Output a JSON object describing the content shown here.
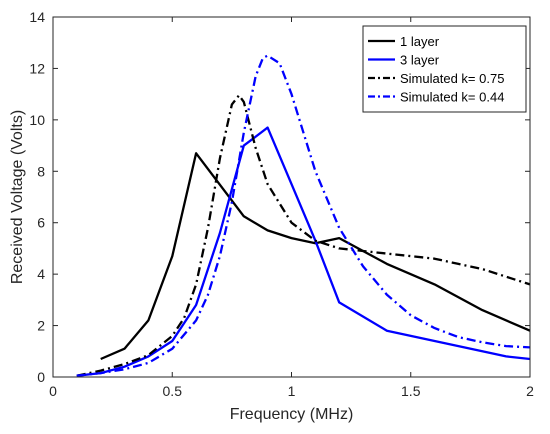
{
  "chart_data": {
    "type": "line",
    "title": "",
    "xlabel": "Frequency (MHz)",
    "ylabel": "Received Voltage (Volts)",
    "xlim": [
      0,
      2
    ],
    "ylim": [
      0,
      14
    ],
    "xticks": [
      0,
      0.5,
      1,
      1.5,
      2
    ],
    "xtick_labels": [
      "0",
      "0.5",
      "1",
      "1.5",
      "2"
    ],
    "yticks": [
      0,
      2,
      4,
      6,
      8,
      10,
      12,
      14
    ],
    "ytick_labels": [
      "0",
      "2",
      "4",
      "6",
      "8",
      "10",
      "12",
      "14"
    ],
    "grid": false,
    "legend_position": "top-right",
    "series": [
      {
        "name": "1 layer",
        "color": "#000000",
        "style": "solid",
        "x": [
          0.2,
          0.3,
          0.4,
          0.5,
          0.6,
          0.8,
          0.9,
          1.0,
          1.1,
          1.2,
          1.4,
          1.6,
          1.8,
          2.0
        ],
        "y": [
          0.7,
          1.1,
          2.2,
          4.7,
          8.7,
          6.25,
          5.7,
          5.4,
          5.2,
          5.4,
          4.4,
          3.6,
          2.6,
          1.8
        ]
      },
      {
        "name": "3 layer",
        "color": "#0000ff",
        "style": "solid",
        "x": [
          0.1,
          0.2,
          0.3,
          0.4,
          0.5,
          0.6,
          0.7,
          0.8,
          0.9,
          1.0,
          1.1,
          1.2,
          1.4,
          1.6,
          1.8,
          1.9,
          2.0
        ],
        "y": [
          0.05,
          0.15,
          0.4,
          0.8,
          1.4,
          2.8,
          5.6,
          9.0,
          9.7,
          7.5,
          5.3,
          2.9,
          1.8,
          1.4,
          1.0,
          0.8,
          0.7
        ]
      },
      {
        "name": "Simulated k= 0.75",
        "color": "#000000",
        "style": "dashdot",
        "x": [
          0.1,
          0.2,
          0.3,
          0.4,
          0.5,
          0.55,
          0.6,
          0.65,
          0.7,
          0.75,
          0.78,
          0.8,
          0.85,
          0.9,
          1.0,
          1.1,
          1.2,
          1.3,
          1.4,
          1.5,
          1.6,
          1.7,
          1.8,
          1.9,
          2.0
        ],
        "y": [
          0.05,
          0.25,
          0.5,
          0.85,
          1.6,
          2.3,
          3.6,
          5.8,
          8.5,
          10.6,
          10.95,
          10.7,
          8.9,
          7.5,
          6.0,
          5.3,
          5.0,
          4.9,
          4.8,
          4.7,
          4.6,
          4.4,
          4.2,
          3.9,
          3.6
        ]
      },
      {
        "name": "Simulated k= 0.44",
        "color": "#0000ff",
        "style": "dashdot",
        "x": [
          0.1,
          0.2,
          0.3,
          0.4,
          0.5,
          0.6,
          0.65,
          0.7,
          0.75,
          0.8,
          0.85,
          0.88,
          0.9,
          0.95,
          1.0,
          1.1,
          1.2,
          1.3,
          1.4,
          1.5,
          1.6,
          1.7,
          1.8,
          1.9,
          2.0
        ],
        "y": [
          0.05,
          0.15,
          0.3,
          0.55,
          1.1,
          2.2,
          3.2,
          4.7,
          6.8,
          9.5,
          11.7,
          12.4,
          12.5,
          12.2,
          11.0,
          8.0,
          5.8,
          4.3,
          3.2,
          2.4,
          1.9,
          1.55,
          1.35,
          1.2,
          1.15
        ]
      }
    ]
  }
}
